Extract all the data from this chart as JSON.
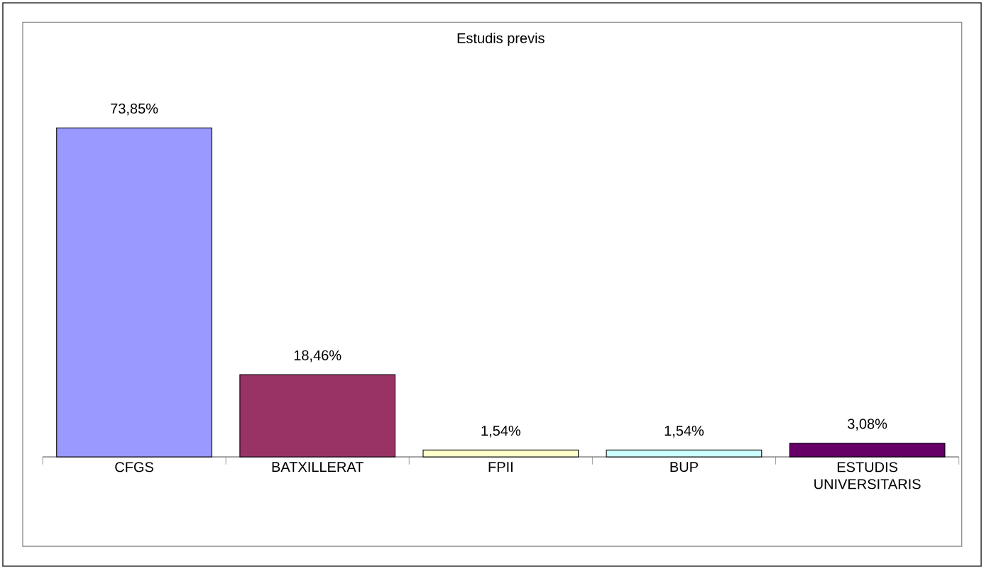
{
  "chart_data": {
    "type": "bar",
    "title": "Estudis previs",
    "categories": [
      "CFGS",
      "BATXILLERAT",
      "FPII",
      "BUP",
      "ESTUDIS UNIVERSITARIS"
    ],
    "values": [
      73.85,
      18.46,
      1.54,
      1.54,
      3.08
    ],
    "value_labels": [
      "73,85%",
      "18,46%",
      "1,54%",
      "1,54%",
      "3,08%"
    ],
    "colors": [
      "#9999ff",
      "#993366",
      "#ffffcc",
      "#ccffff",
      "#660066"
    ]
  }
}
